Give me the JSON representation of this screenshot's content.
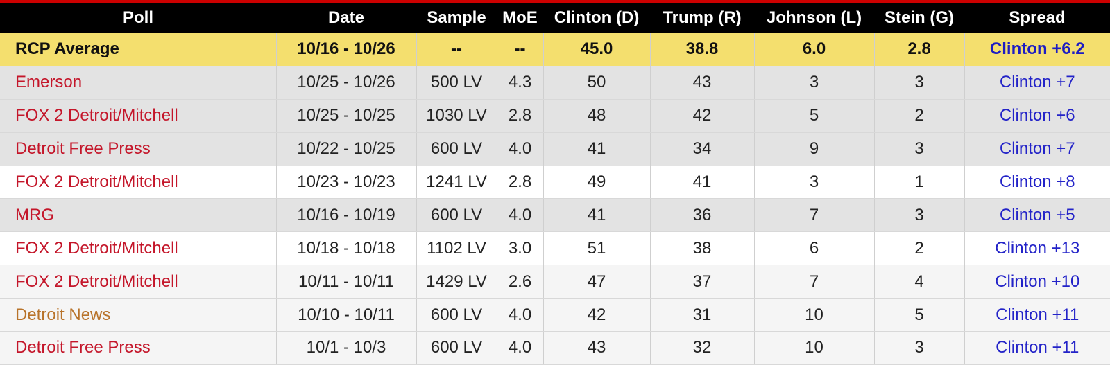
{
  "table": {
    "headers": [
      "Poll",
      "Date",
      "Sample",
      "MoE",
      "Clinton (D)",
      "Trump (R)",
      "Johnson (L)",
      "Stein (G)",
      "Spread"
    ],
    "rows": [
      [
        "RCP Average",
        "10/16 - 10/26",
        "--",
        "--",
        "45.0",
        "38.8",
        "6.0",
        "2.8",
        "Clinton +6.2"
      ],
      [
        "Emerson",
        "10/25 - 10/26",
        "500 LV",
        "4.3",
        "50",
        "43",
        "3",
        "3",
        "Clinton +7"
      ],
      [
        "FOX 2 Detroit/Mitchell",
        "10/25 - 10/25",
        "1030 LV",
        "2.8",
        "48",
        "42",
        "5",
        "2",
        "Clinton +6"
      ],
      [
        "Detroit Free Press",
        "10/22 - 10/25",
        "600 LV",
        "4.0",
        "41",
        "34",
        "9",
        "3",
        "Clinton +7"
      ],
      [
        "FOX 2 Detroit/Mitchell",
        "10/23 - 10/23",
        "1241 LV",
        "2.8",
        "49",
        "41",
        "3",
        "1",
        "Clinton +8"
      ],
      [
        "MRG",
        "10/16 - 10/19",
        "600 LV",
        "4.0",
        "41",
        "36",
        "7",
        "3",
        "Clinton +5"
      ],
      [
        "FOX 2 Detroit/Mitchell",
        "10/18 - 10/18",
        "1102 LV",
        "3.0",
        "51",
        "38",
        "6",
        "2",
        "Clinton +13"
      ],
      [
        "FOX 2 Detroit/Mitchell",
        "10/11 - 10/11",
        "1429 LV",
        "2.6",
        "47",
        "37",
        "7",
        "4",
        "Clinton +10"
      ],
      [
        "Detroit News",
        "10/10 - 10/11",
        "600 LV",
        "4.0",
        "42",
        "31",
        "10",
        "5",
        "Clinton +11"
      ],
      [
        "Detroit Free Press",
        "10/1 - 10/3",
        "600 LV",
        "4.0",
        "43",
        "32",
        "10",
        "3",
        "Clinton +11"
      ]
    ]
  }
}
